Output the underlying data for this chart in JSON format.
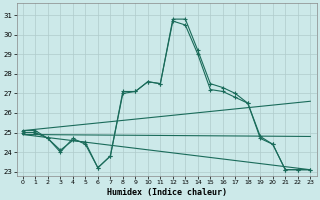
{
  "title": "",
  "xlabel": "Humidex (Indice chaleur)",
  "background_color": "#cce9e9",
  "grid_color": "#b0cccc",
  "line_color": "#1a6b5a",
  "xlim": [
    -0.5,
    23.5
  ],
  "ylim": [
    22.8,
    31.6
  ],
  "xticks": [
    0,
    1,
    2,
    3,
    4,
    5,
    6,
    7,
    8,
    9,
    10,
    11,
    12,
    13,
    14,
    15,
    16,
    17,
    18,
    19,
    20,
    21,
    22,
    23
  ],
  "yticks": [
    23,
    24,
    25,
    26,
    27,
    28,
    29,
    30,
    31
  ],
  "curve1_x": [
    0,
    1,
    2,
    3,
    4,
    5,
    6,
    7,
    8,
    9,
    10,
    11,
    12,
    13,
    14,
    15,
    16,
    17,
    18,
    19,
    20,
    21,
    22,
    23
  ],
  "curve1_y": [
    25.1,
    25.1,
    24.7,
    24.1,
    24.6,
    24.5,
    23.2,
    23.8,
    27.1,
    27.1,
    27.6,
    27.5,
    30.8,
    30.8,
    29.2,
    27.5,
    27.3,
    27.0,
    26.5,
    24.8,
    24.4,
    23.1,
    23.1,
    23.1
  ],
  "curve2_x": [
    0,
    1,
    2,
    3,
    4,
    5,
    6,
    7,
    8,
    9,
    10,
    11,
    12,
    13,
    14,
    15,
    16,
    17,
    18,
    19,
    20,
    21,
    22,
    23
  ],
  "curve2_y": [
    25.0,
    25.0,
    24.7,
    24.0,
    24.7,
    24.4,
    23.2,
    23.8,
    27.0,
    27.1,
    27.6,
    27.5,
    30.7,
    30.5,
    29.0,
    27.2,
    27.1,
    26.8,
    26.5,
    24.7,
    24.4,
    23.1,
    23.1,
    23.1
  ],
  "line1_x": [
    0,
    23
  ],
  "line1_y": [
    25.1,
    26.6
  ],
  "line2_x": [
    0,
    23
  ],
  "line2_y": [
    24.9,
    24.8
  ],
  "line3_x": [
    0,
    23
  ],
  "line3_y": [
    24.9,
    23.1
  ]
}
